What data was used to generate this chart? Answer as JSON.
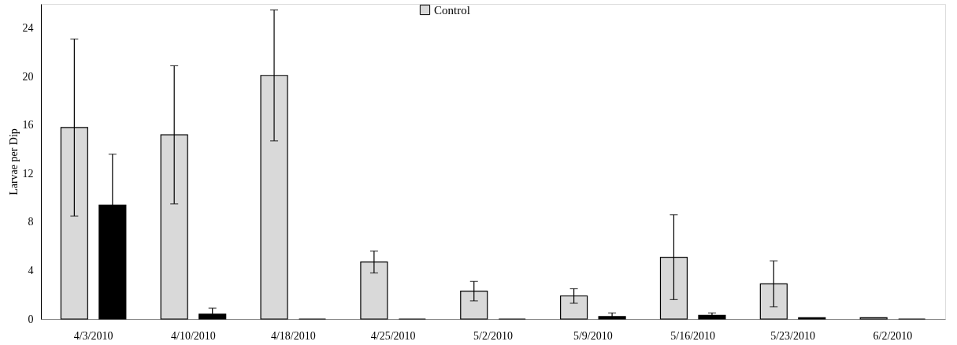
{
  "chart_data": {
    "type": "bar",
    "ylabel": "Larvae per Dip",
    "categories": [
      "4/3/2010",
      "4/10/2010",
      "4/18/2010",
      "4/25/2010",
      "5/2/2010",
      "5/9/2010",
      "5/16/2010",
      "5/23/2010",
      "6/2/2010"
    ],
    "series": [
      {
        "name": "Control",
        "color": "#d9d9d9",
        "values": [
          15.8,
          15.2,
          20.1,
          4.7,
          2.3,
          1.9,
          5.1,
          2.9,
          0.1
        ],
        "errors": [
          7.3,
          5.7,
          5.4,
          0.9,
          0.8,
          0.6,
          3.5,
          1.9,
          null
        ]
      },
      {
        "color": "#000000",
        "values": [
          9.4,
          0.4,
          0,
          0,
          0,
          0.2,
          0.3,
          0.1,
          0
        ],
        "errors": [
          4.2,
          [
            0.4,
            0.9
          ],
          null,
          null,
          null,
          [
            0.2,
            0.5
          ],
          [
            0.3,
            0.5
          ],
          null,
          null
        ]
      }
    ],
    "ylim": [
      0,
      26
    ],
    "yticks": [
      0,
      4,
      8,
      12,
      16,
      20,
      24
    ],
    "grid": false,
    "legend": "top"
  }
}
